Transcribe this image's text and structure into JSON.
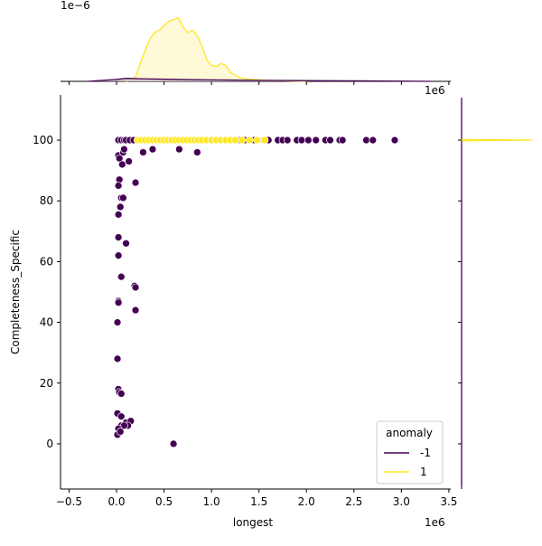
{
  "chart_data": {
    "type": "scatter",
    "x_label": "longest",
    "y_label": "Completeness_Specific",
    "x_offset_label": "1e6",
    "xlim": [
      -0.59,
      3.52
    ],
    "ylim": [
      -14.9,
      114.9
    ],
    "xticks": [
      {
        "value": -0.5,
        "label": "−0.5"
      },
      {
        "value": 0,
        "label": "0.0"
      },
      {
        "value": 0.5,
        "label": "0.5"
      },
      {
        "value": 1,
        "label": "1.0"
      },
      {
        "value": 1.5,
        "label": "1.5"
      },
      {
        "value": 2,
        "label": "2.0"
      },
      {
        "value": 2.5,
        "label": "2.5"
      },
      {
        "value": 3,
        "label": "3.0"
      },
      {
        "value": 3.5,
        "label": "3.5"
      }
    ],
    "yticks": [
      0,
      20,
      40,
      60,
      80,
      100
    ],
    "legend_title": "anomaly",
    "legend_position": "lower right",
    "series": [
      {
        "name": "-1",
        "color": "#440154",
        "x": [
          0.02,
          0.05,
          0.08,
          0.1,
          0.14,
          0.18,
          0.3,
          0.38,
          0.5,
          1.3,
          1.35,
          1.45,
          1.55,
          1.6,
          1.7,
          1.75,
          1.8,
          1.9,
          1.95,
          2.02,
          2.1,
          2.2,
          2.25,
          2.35,
          2.38,
          2.63,
          2.7,
          2.93,
          0.02,
          0.03,
          0.07,
          0.08,
          0.13,
          0.06,
          0.28,
          0.38,
          0.66,
          0.85,
          0.2,
          0.03,
          0.02,
          0.05,
          0.07,
          0.04,
          0.02,
          0.02,
          0.1,
          0.02,
          0.05,
          0.19,
          0.2,
          0.02,
          0.02,
          0.2,
          0.01,
          0.01,
          0.02,
          0.03,
          0.05,
          0.01,
          0.05,
          0.05,
          0.1,
          0.15,
          0.12,
          0.08,
          0.02,
          0.01,
          0.04,
          0.6
        ],
        "y": [
          100,
          100,
          100,
          100,
          100,
          100,
          100,
          100,
          100,
          100,
          100,
          100,
          100,
          100,
          100,
          100,
          100,
          100,
          100,
          100,
          100,
          100,
          100,
          100,
          100,
          100,
          100,
          100,
          95,
          94,
          96,
          97,
          93,
          92,
          96,
          97,
          97,
          96,
          86,
          87,
          85,
          81,
          81,
          78,
          75.5,
          68,
          66,
          62,
          55,
          52,
          51.5,
          47,
          46.5,
          44,
          40,
          28,
          18,
          17,
          16.5,
          10,
          9,
          6,
          7,
          7.5,
          6,
          6,
          5,
          3,
          4,
          0
        ]
      },
      {
        "name": "1",
        "color": "#fde725",
        "x": [
          0.22,
          0.26,
          0.3,
          0.34,
          0.38,
          0.42,
          0.46,
          0.5,
          0.54,
          0.58,
          0.62,
          0.66,
          0.7,
          0.74,
          0.78,
          0.82,
          0.86,
          0.9,
          0.95,
          1.0,
          1.05,
          1.1,
          1.15,
          1.2,
          1.25,
          1.32,
          1.4,
          1.48,
          1.56
        ],
        "y": [
          100,
          100,
          100,
          100,
          100,
          100,
          100,
          100,
          100,
          100,
          100,
          100,
          100,
          100,
          100,
          100,
          100,
          100,
          100,
          100,
          100,
          100,
          100,
          100,
          100,
          100,
          100,
          100,
          100
        ]
      }
    ],
    "top_kde": {
      "offset_label": "1e−6",
      "ylim": [
        0,
        1.6
      ],
      "series": [
        {
          "name": "1",
          "color": "#fde725",
          "fill": "#fef6c4",
          "x": [
            0.1,
            0.2,
            0.25,
            0.3,
            0.35,
            0.4,
            0.45,
            0.5,
            0.55,
            0.6,
            0.65,
            0.7,
            0.75,
            0.8,
            0.85,
            0.9,
            0.95,
            1.0,
            1.05,
            1.1,
            1.15,
            1.2,
            1.3,
            1.4,
            1.6,
            1.8,
            2.0
          ],
          "values": [
            0,
            0.09,
            0.36,
            0.62,
            0.85,
            0.98,
            1.03,
            1.12,
            1.21,
            1.24,
            1.28,
            1.1,
            0.98,
            1.03,
            0.92,
            0.71,
            0.44,
            0.32,
            0.3,
            0.36,
            0.32,
            0.18,
            0.07,
            0.04,
            0.02,
            0.01,
            0
          ]
        },
        {
          "name": "-1",
          "color": "#440154",
          "fill": "#c9b9cc",
          "x": [
            -0.3,
            0,
            0.1,
            0.3,
            0.6,
            1,
            1.5,
            2,
            2.5,
            3,
            3.3
          ],
          "values": [
            0,
            0.04,
            0.06,
            0.05,
            0.04,
            0.03,
            0.02,
            0.015,
            0.01,
            0.005,
            0
          ]
        }
      ]
    },
    "right_kde": {
      "xlim": [
        0,
        1.1
      ],
      "series": [
        {
          "name": "-1",
          "color": "#440154",
          "y": [
            -14,
            99.5,
            100,
            100.5,
            114
          ],
          "values": [
            0,
            0,
            0.02,
            0,
            0
          ]
        },
        {
          "name": "1",
          "color": "#fde725",
          "y": [
            99.8,
            100,
            100.2
          ],
          "values": [
            0,
            1,
            0
          ]
        }
      ]
    }
  }
}
